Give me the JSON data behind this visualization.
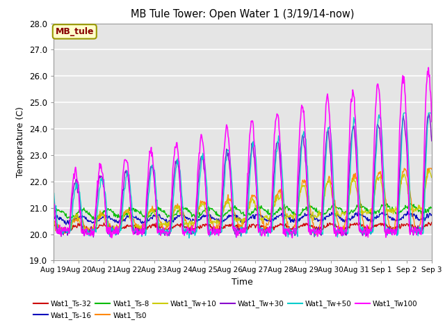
{
  "title": "MB Tule Tower: Open Water 1 (3/19/14-now)",
  "xlabel": "Time",
  "ylabel": "Temperature (C)",
  "ylim": [
    19.0,
    28.0
  ],
  "yticks": [
    19.0,
    20.0,
    21.0,
    22.0,
    23.0,
    24.0,
    25.0,
    26.0,
    27.0,
    28.0
  ],
  "xtick_labels": [
    "Aug 19",
    "Aug 20",
    "Aug 21",
    "Aug 22",
    "Aug 23",
    "Aug 24",
    "Aug 25",
    "Aug 26",
    "Aug 27",
    "Aug 28",
    "Aug 29",
    "Aug 30",
    "Aug 31",
    "Sep 1",
    "Sep 2",
    "Sep 3"
  ],
  "n_days": 15,
  "pts_per_day": 48,
  "series_names": [
    "Wat1_Ts-32",
    "Wat1_Ts-16",
    "Wat1_Ts-8",
    "Wat1_Ts0",
    "Wat1_Tw+10",
    "Wat1_Tw+30",
    "Wat1_Tw+50",
    "Wat1_Tw100"
  ],
  "series_colors": [
    "#cc0000",
    "#0000bb",
    "#00bb00",
    "#ff8800",
    "#cccc00",
    "#8800cc",
    "#00cccc",
    "#ff00ff"
  ],
  "series_lw": [
    1.0,
    1.0,
    1.0,
    1.0,
    1.0,
    1.0,
    1.0,
    1.2
  ],
  "legend_label": "MB_tule",
  "legend_box_color": "#ffffcc",
  "legend_text_color": "#880000",
  "background_color": "#e5e5e5",
  "grid_color": "#ffffff",
  "figsize": [
    6.4,
    4.8
  ],
  "dpi": 100
}
